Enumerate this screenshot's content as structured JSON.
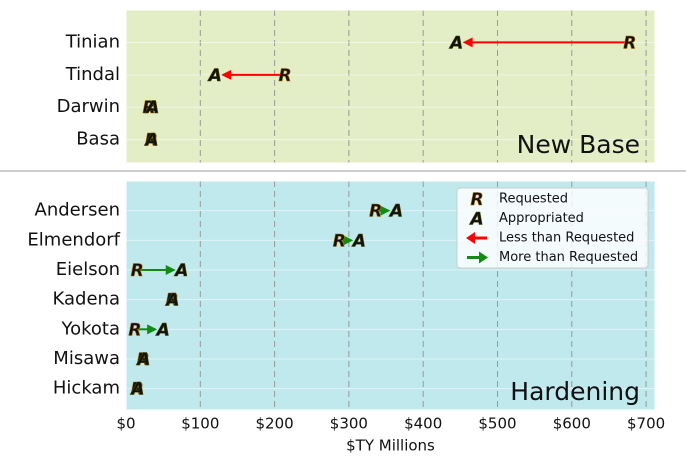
{
  "chart_data": [
    {
      "type": "dot-arrow",
      "categories": [
        "Tinian",
        "Tindal",
        "Darwin",
        "Basa"
      ],
      "annotation": "New Base",
      "background": "#e3edc6",
      "series": [
        {
          "marker": "R",
          "color": "#ffa500",
          "values": [
            678,
            214,
            31,
            34
          ]
        },
        {
          "marker": "A",
          "color": "#8c8c00",
          "values": [
            445,
            120,
            36,
            35
          ]
        }
      ],
      "arrows": [
        {
          "color": "#ff0000"
        },
        {
          "color": "#138a13"
        }
      ],
      "xlim": [
        0,
        712
      ],
      "xticks": [
        0,
        100,
        200,
        300,
        400,
        500,
        600,
        700
      ],
      "grid": true
    },
    {
      "type": "dot-arrow",
      "categories": [
        "Andersen",
        "Elmendorf",
        "Eielson",
        "Kadena",
        "Yokota",
        "Misawa",
        "Hickam"
      ],
      "annotation": "Hardening",
      "background": "#c0e9ee",
      "series": [
        {
          "name": "Requested",
          "marker": "R",
          "color": "#ffa500",
          "values": [
            336,
            287,
            15,
            62,
            12,
            23,
            15
          ]
        },
        {
          "name": "Appropriated",
          "marker": "A",
          "color": "#8c8c00",
          "values": [
            364,
            314,
            75,
            63,
            50,
            24,
            16
          ]
        }
      ],
      "arrows": [
        {
          "name": "Less than Requested",
          "color": "#ff0000"
        },
        {
          "name": "More than Requested",
          "color": "#138a13"
        }
      ],
      "xlim": [
        0,
        712
      ],
      "xticks": [
        {
          "value": 0,
          "label": "$0"
        },
        {
          "value": 100,
          "label": "$100"
        },
        {
          "value": 200,
          "label": "$200"
        },
        {
          "value": 300,
          "label": "$300"
        },
        {
          "value": 400,
          "label": "$400"
        },
        {
          "value": 500,
          "label": "$500"
        },
        {
          "value": 600,
          "label": "$600"
        },
        {
          "value": 700,
          "label": "$700"
        }
      ],
      "xlabel": "$TY Millions",
      "grid": true,
      "legend": "upper right"
    }
  ]
}
